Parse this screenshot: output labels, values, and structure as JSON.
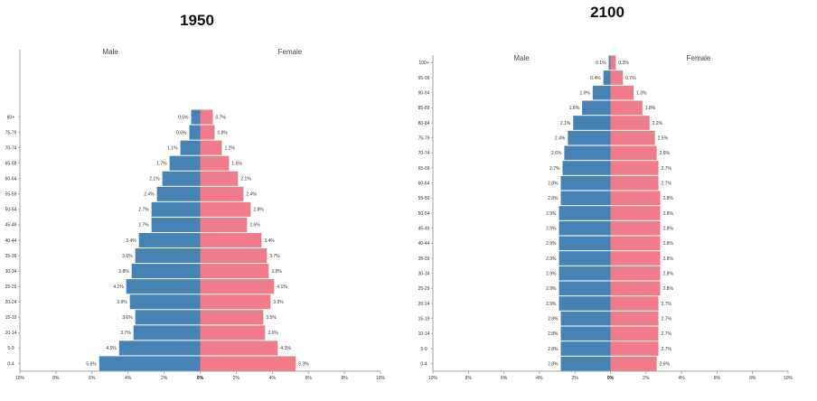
{
  "colors": {
    "male": "#4682b4",
    "female": "#f07b8a",
    "axis": "#888888"
  },
  "chart_data": [
    {
      "type": "bar",
      "title": "1950",
      "orientation": "horizontal-population-pyramid",
      "sex_labels": {
        "male": "Male",
        "female": "Female"
      },
      "xlim": [
        -10,
        10
      ],
      "x_ticks": [
        "10%",
        "8%",
        "6%",
        "4%",
        "2%",
        "0%",
        "2%",
        "4%",
        "6%",
        "8%",
        "10%"
      ],
      "categories": [
        "0-4",
        "5-9",
        "10-14",
        "15-19",
        "20-24",
        "25-29",
        "30-34",
        "35-39",
        "40-44",
        "45-49",
        "50-54",
        "55-59",
        "60-64",
        "65-69",
        "70-74",
        "75-79",
        "80+"
      ],
      "series": [
        {
          "name": "Male",
          "values": [
            5.6,
            4.5,
            3.7,
            3.6,
            3.9,
            4.1,
            3.8,
            3.6,
            3.4,
            2.7,
            2.7,
            2.4,
            2.1,
            1.7,
            1.1,
            0.6,
            0.5
          ]
        },
        {
          "name": "Female",
          "values": [
            5.3,
            4.3,
            3.6,
            3.5,
            3.9,
            4.1,
            3.8,
            3.7,
            3.4,
            2.6,
            2.8,
            2.4,
            2.1,
            1.6,
            1.2,
            0.8,
            0.7
          ]
        }
      ]
    },
    {
      "type": "bar",
      "title": "2100",
      "orientation": "horizontal-population-pyramid",
      "sex_labels": {
        "male": "Male",
        "female": "Female"
      },
      "xlim": [
        -10,
        10
      ],
      "x_ticks": [
        "10%",
        "8%",
        "6%",
        "4%",
        "2%",
        "0%",
        "2%",
        "4%",
        "6%",
        "8%",
        "10%"
      ],
      "categories": [
        "0-4",
        "5-9",
        "10-14",
        "15-19",
        "20-24",
        "25-29",
        "30-34",
        "35-39",
        "40-44",
        "45-49",
        "50-54",
        "55-59",
        "60-64",
        "65-69",
        "70-74",
        "75-79",
        "80-84",
        "85-89",
        "90-94",
        "95-99",
        "100+"
      ],
      "series": [
        {
          "name": "Male",
          "values": [
            2.8,
            2.8,
            2.8,
            2.8,
            2.9,
            2.9,
            2.9,
            2.9,
            2.9,
            2.9,
            2.9,
            2.8,
            2.8,
            2.7,
            2.6,
            2.4,
            2.1,
            1.6,
            1.0,
            0.4,
            0.1
          ]
        },
        {
          "name": "Female",
          "values": [
            2.6,
            2.7,
            2.7,
            2.7,
            2.7,
            2.8,
            2.8,
            2.8,
            2.8,
            2.8,
            2.8,
            2.8,
            2.7,
            2.7,
            2.6,
            2.5,
            2.2,
            1.8,
            1.3,
            0.7,
            0.3
          ]
        }
      ]
    }
  ]
}
